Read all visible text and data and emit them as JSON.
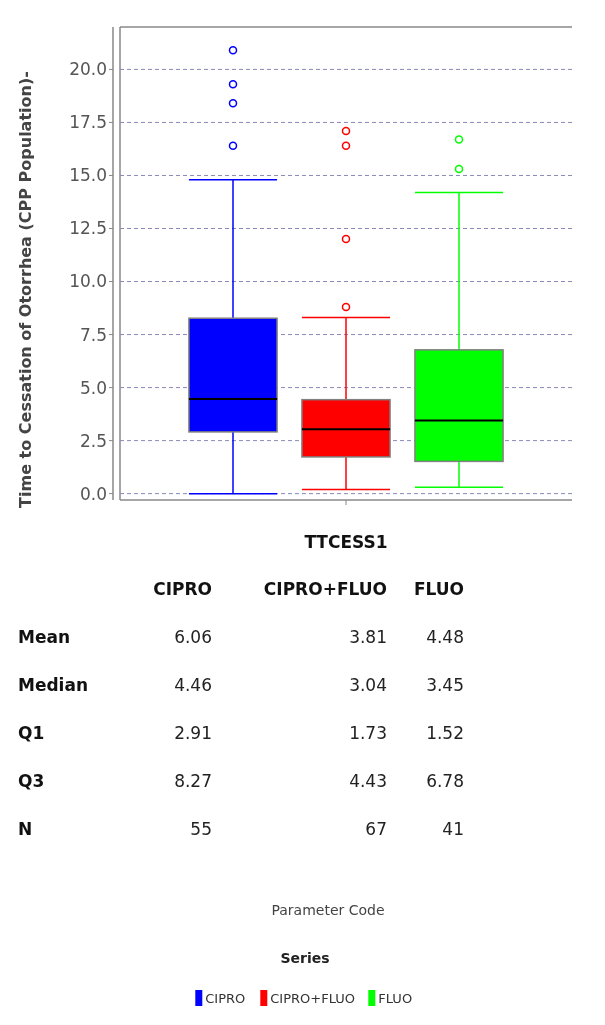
{
  "chart_data": {
    "type": "box",
    "ylabel": "Time to Cessation of Otorrhea (CPP Population)-",
    "legend_title": "Series",
    "legend": "bottom",
    "grid": "y",
    "categories": [
      "TTCESS1"
    ],
    "ylim": [
      -0.3,
      22
    ],
    "yticks": [
      {
        "value": 0,
        "label": "0.0"
      },
      {
        "value": 2.5,
        "label": "2.5"
      },
      {
        "value": 5,
        "label": "5.0"
      },
      {
        "value": 7.5,
        "label": "7.5"
      },
      {
        "value": 10,
        "label": "10.0"
      },
      {
        "value": 12.5,
        "label": "12.5"
      },
      {
        "value": 15,
        "label": "15.0"
      },
      {
        "value": 17.5,
        "label": "17.5"
      },
      {
        "value": 20,
        "label": "20.0"
      }
    ],
    "series": [
      {
        "name": "CIPRO",
        "color": "#0000ff",
        "boxes": [
          {
            "low": 0,
            "q1": 2.91,
            "median": 4.46,
            "q3": 8.27,
            "high": 14.8,
            "outliers": [
              16.4,
              18.4,
              19.3,
              20.9
            ]
          }
        ]
      },
      {
        "name": "CIPRO+FLUO",
        "color": "#ff0000",
        "boxes": [
          {
            "low": 0.2,
            "q1": 1.73,
            "median": 3.04,
            "q3": 4.43,
            "high": 8.3,
            "outliers": [
              8.8,
              12.0,
              16.4,
              17.1
            ]
          }
        ]
      },
      {
        "name": "FLUO",
        "color": "#00ff00",
        "boxes": [
          {
            "low": 0.3,
            "q1": 1.52,
            "median": 3.45,
            "q3": 6.78,
            "high": 14.2,
            "outliers": [
              15.3,
              16.7
            ]
          }
        ]
      }
    ],
    "annotations": [
      "Mean",
      "6.06",
      "3.81",
      "4.48",
      "Median",
      "4.46",
      "3.04",
      "3.45",
      "Q1",
      "2.91",
      "1.73",
      "1.52",
      "Q3",
      "8.27",
      "4.43",
      "6.78",
      "N",
      "55",
      "67",
      "41",
      "Parameter Code"
    ]
  }
}
